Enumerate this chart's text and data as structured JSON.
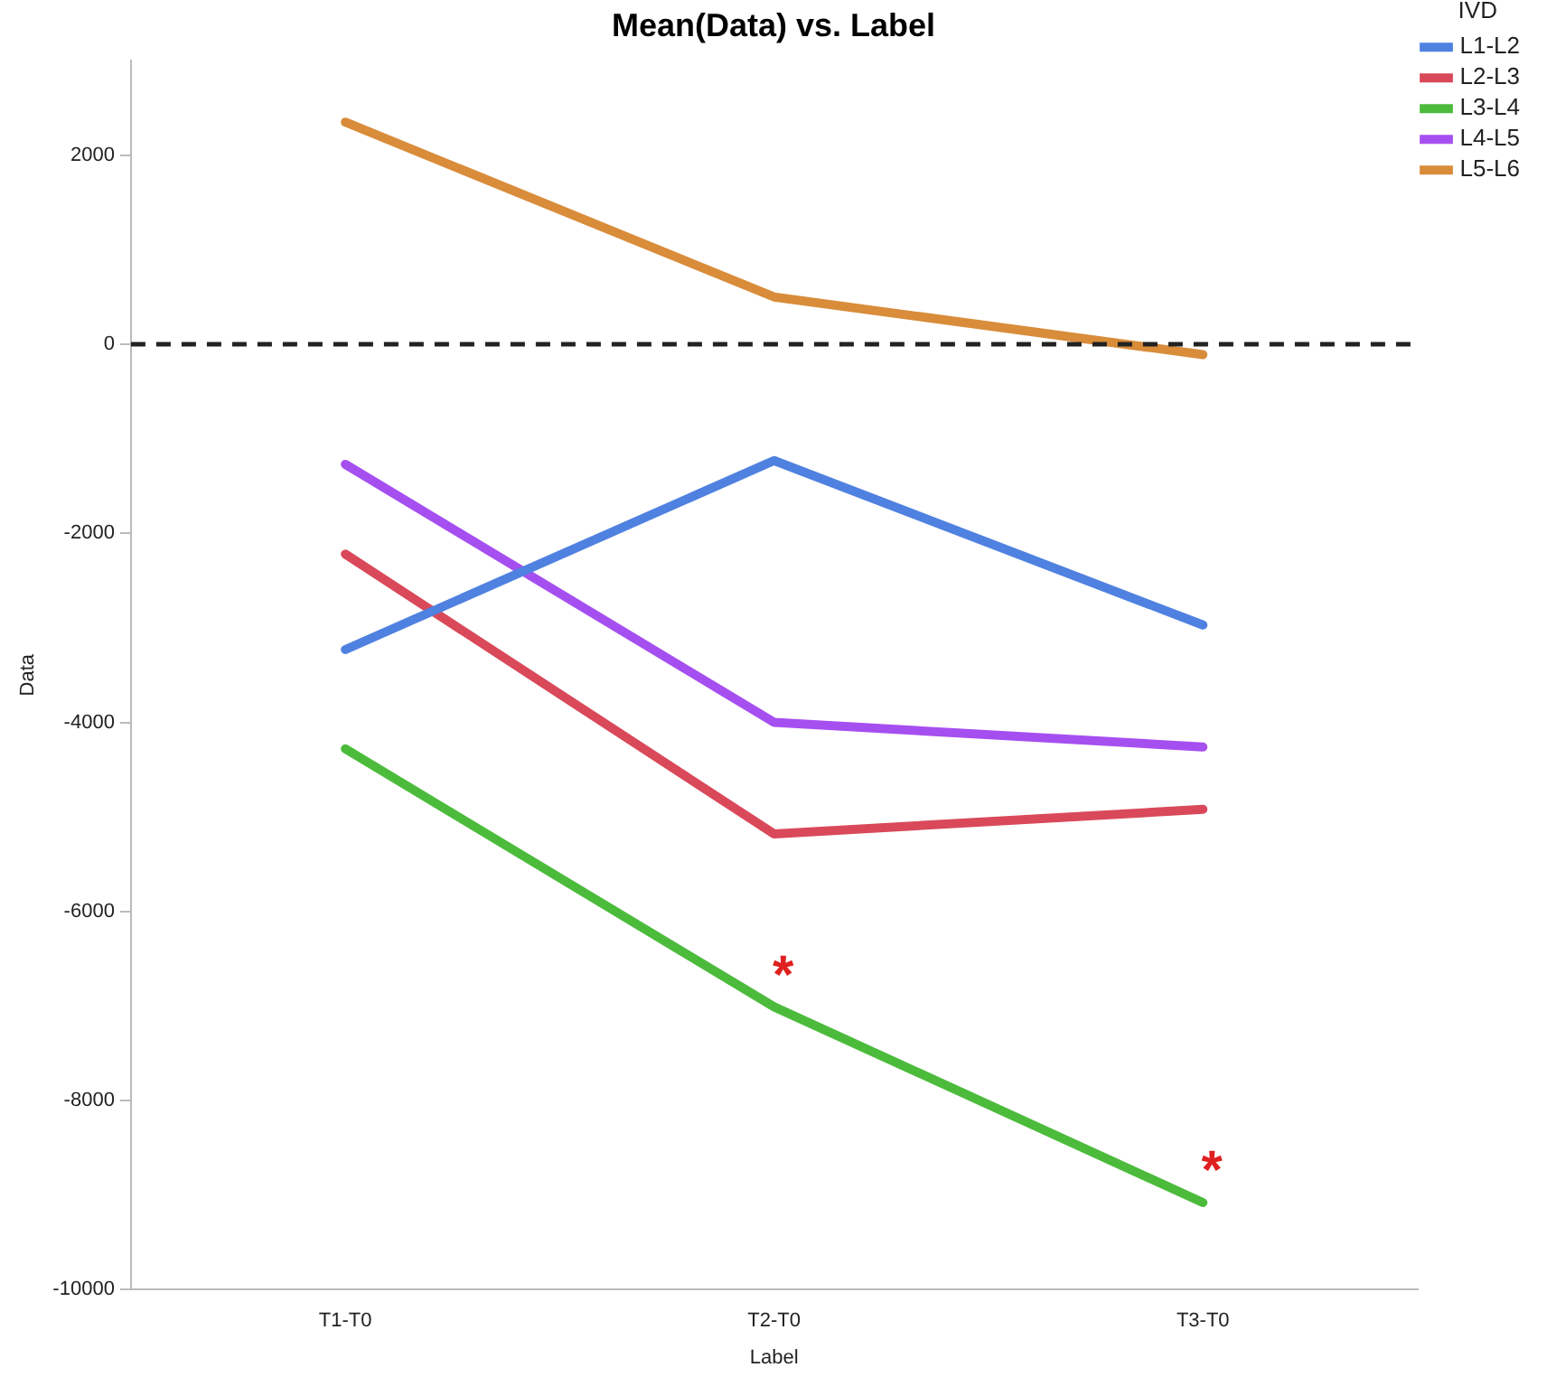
{
  "chart_data": {
    "type": "line",
    "title": "Mean(Data) vs. Label",
    "xlabel": "Label",
    "ylabel": "Data",
    "legend_title": "IVD",
    "categories": [
      "T1-T0",
      "T2-T0",
      "T3-T0"
    ],
    "series": [
      {
        "name": "L1-L2",
        "color": "#4f81e0",
        "values": [
          -3230,
          -1230,
          -2970
        ]
      },
      {
        "name": "L2-L3",
        "color": "#d9495a",
        "values": [
          -2220,
          -5180,
          -4920
        ]
      },
      {
        "name": "L3-L4",
        "color": "#4cbb3c",
        "values": [
          -4280,
          -7010,
          -9080
        ]
      },
      {
        "name": "L4-L5",
        "color": "#a64ff0",
        "values": [
          -1270,
          -4000,
          -4260
        ]
      },
      {
        "name": "L5-L6",
        "color": "#d98c3a",
        "values": [
          2350,
          500,
          -110
        ]
      }
    ],
    "ylim": [
      -10000,
      3000
    ],
    "yticks": [
      -10000,
      -8000,
      -6000,
      -4000,
      -2000,
      0,
      2000
    ],
    "ref_lines": [
      {
        "axis": "y",
        "value": 0,
        "color": "#222222",
        "line_style": "dashed"
      }
    ],
    "annotations": [
      {
        "text": "*",
        "x": "T2-T0",
        "y": -7010
      },
      {
        "text": "*",
        "x": "T3-T0",
        "y": -9080
      }
    ],
    "grid": false,
    "legend": "top right",
    "marker": "none",
    "line_style": "solid"
  }
}
